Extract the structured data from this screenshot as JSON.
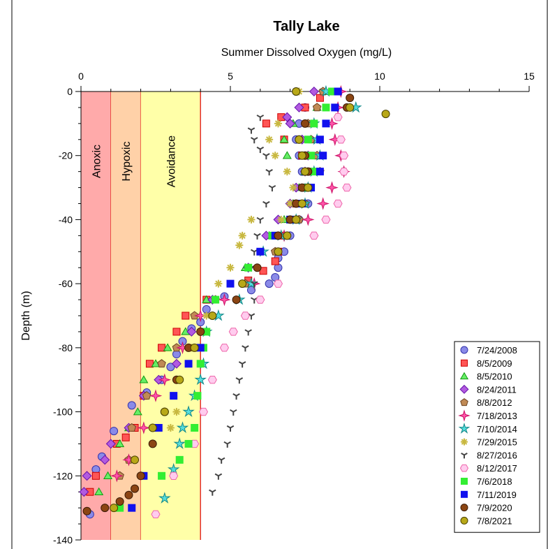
{
  "chart_data": {
    "type": "scatter",
    "title": "Tally Lake",
    "subtitle": "Summer Dissolved Oxygen (mg/L)",
    "xlabel": "",
    "ylabel": "Depth (m)",
    "xlim": [
      0,
      15
    ],
    "ylim": [
      -140,
      0
    ],
    "x_ticks": [
      "0",
      "5",
      "10",
      "15"
    ],
    "y_ticks": [
      "0",
      "-20",
      "-40",
      "-60",
      "-80",
      "-100",
      "-120",
      "-140"
    ],
    "axis_position": "top",
    "legend_position": "bottom-right",
    "zones": [
      {
        "label": "Anoxic",
        "x0": 0,
        "x1": 1,
        "color": "#ffaaaa"
      },
      {
        "label": "Hypoxic",
        "x0": 1,
        "x1": 2,
        "color": "#ffd1a8"
      },
      {
        "label": "Avoidance",
        "x0": 2,
        "x1": 4,
        "color": "#ffffa8"
      }
    ],
    "series": [
      {
        "name": "7/24/2008",
        "marker": "circle",
        "color": "#8a8ae8",
        "stroke": "#3333aa",
        "x": [
          7.2,
          7.5,
          7.3,
          7.2,
          7.3,
          7.4,
          7.5,
          7.6,
          7.3,
          7.0,
          6.8,
          6.6,
          6.6,
          6.5,
          6.3,
          5.7,
          4.8,
          4.2,
          4.0,
          3.7,
          3.4,
          3.2,
          3.0,
          2.7,
          2.2,
          1.7,
          1.1,
          0.7,
          0.5,
          0.3
        ],
        "y": [
          0,
          -5,
          -10,
          -15,
          -20,
          -25,
          -30,
          -35,
          -40,
          -45,
          -50,
          -52,
          -55,
          -58,
          -60,
          -62,
          -64,
          -68,
          -72,
          -74,
          -78,
          -82,
          -86,
          -90,
          -94,
          -98,
          -106,
          -114,
          -118,
          -132
        ]
      },
      {
        "name": "8/5/2009",
        "marker": "square",
        "color": "#ff5555",
        "stroke": "#cc0000",
        "x": [
          8.0,
          7.5,
          6.7,
          6.2,
          6.8,
          7.4,
          7.6,
          7.5,
          7.2,
          7.0,
          6.8,
          6.6,
          6.5,
          6.1,
          5.6,
          4.2,
          3.5,
          3.2,
          2.7,
          2.3,
          2.1,
          1.8,
          1.5,
          1.2,
          0.5,
          0.3
        ],
        "y": [
          -2,
          -5,
          -8,
          -10,
          -15,
          -20,
          -25,
          -30,
          -35,
          -40,
          -45,
          -50,
          -53,
          -56,
          -59,
          -65,
          -70,
          -75,
          -80,
          -85,
          -95,
          -105,
          -108,
          -110,
          -120,
          -125
        ]
      },
      {
        "name": "8/5/2010",
        "marker": "triangle",
        "color": "#66ee66",
        "stroke": "#119911",
        "x": [
          8.2,
          7.9,
          7.1,
          6.8,
          6.9,
          7.5,
          7.3,
          7.1,
          6.8,
          6.3,
          5.5,
          4.2,
          3.5,
          2.9,
          2.5,
          2.1,
          1.9,
          1.6,
          1.3,
          0.9,
          0.6
        ],
        "y": [
          0,
          -5,
          -10,
          -15,
          -20,
          -25,
          -30,
          -35,
          -40,
          -45,
          -55,
          -65,
          -75,
          -80,
          -85,
          -90,
          -100,
          -105,
          -110,
          -120,
          -125
        ]
      },
      {
        "name": "8/24/2011",
        "marker": "diamond",
        "color": "#b25ae0",
        "stroke": "#6611aa",
        "x": [
          7.8,
          7.3,
          6.9,
          7.0,
          7.4,
          7.6,
          7.5,
          7.2,
          7.0,
          6.6,
          6.2,
          5.6,
          4.4,
          3.7,
          3.2,
          2.6,
          2.1,
          1.6,
          1.0,
          0.8,
          0.2,
          0.1
        ],
        "y": [
          0,
          -5,
          -8,
          -10,
          -15,
          -20,
          -25,
          -30,
          -35,
          -40,
          -45,
          -55,
          -65,
          -75,
          -85,
          -90,
          -95,
          -105,
          -110,
          -115,
          -120,
          -125
        ]
      },
      {
        "name": "8/8/2012",
        "marker": "pentagon",
        "color": "#c08a55",
        "stroke": "#6b4422",
        "x": [
          8.1,
          7.9,
          7.6,
          7.7,
          7.9,
          8.0,
          7.6,
          7.5,
          7.3,
          6.5,
          5.5,
          4.5,
          3.8,
          3.2,
          2.7,
          2.2,
          1.7,
          1.6,
          1.3
        ],
        "y": [
          0,
          -5,
          -10,
          -15,
          -20,
          -25,
          -30,
          -35,
          -40,
          -50,
          -60,
          -65,
          -70,
          -80,
          -85,
          -95,
          -105,
          -115,
          -120
        ]
      },
      {
        "name": "7/18/2013",
        "marker": "star4",
        "color": "#ff55aa",
        "stroke": "#cc1166",
        "x": [
          8.7,
          8.6,
          8.4,
          8.5,
          8.7,
          8.8,
          8.4,
          8.1,
          7.6,
          6.8,
          5.8,
          4.8,
          4.0,
          3.4,
          2.8,
          2.5,
          2.1,
          1.6,
          1.2
        ],
        "y": [
          0,
          -5,
          -10,
          -15,
          -20,
          -25,
          -30,
          -35,
          -40,
          -45,
          -60,
          -65,
          -70,
          -80,
          -90,
          -95,
          -105,
          -115,
          -120
        ]
      },
      {
        "name": "7/10/2014",
        "marker": "star5",
        "color": "#55dddd",
        "stroke": "#118888",
        "x": [
          8.2,
          9.2,
          7.8,
          7.9,
          8.0,
          7.8,
          7.6,
          7.5,
          7.2,
          6.7,
          6.1,
          5.7,
          5.3,
          4.6,
          4.2,
          4.1,
          4.0,
          3.8,
          3.6,
          3.4,
          3.3,
          3.1,
          2.8
        ],
        "y": [
          0,
          -5,
          -10,
          -15,
          -20,
          -25,
          -30,
          -35,
          -40,
          -45,
          -50,
          -60,
          -65,
          -70,
          -75,
          -85,
          -90,
          -95,
          -100,
          -105,
          -110,
          -118,
          -127
        ]
      },
      {
        "name": "7/29/2015",
        "marker": "asterisk",
        "color": "#c8b840",
        "stroke": "#8c7a10",
        "x": [
          7.3,
          6.6,
          6.3,
          6.5,
          6.9,
          7.1,
          7.0,
          6.7,
          5.7,
          5.4,
          5.3,
          5.0,
          4.6,
          4.2,
          3.7,
          3.2,
          3.0
        ],
        "y": [
          0,
          -10,
          -15,
          -20,
          -25,
          -30,
          -35,
          -40,
          -40,
          -45,
          -48,
          -55,
          -60,
          -70,
          -80,
          -100,
          -105
        ]
      },
      {
        "name": "8/27/2016",
        "marker": "tri",
        "color": "#444444",
        "stroke": "#444444",
        "x": [
          6.0,
          5.7,
          5.8,
          6.0,
          6.2,
          6.3,
          6.4,
          6.2,
          6.0,
          5.9,
          5.8,
          5.7,
          5.8,
          5.8,
          5.7,
          5.6,
          5.5,
          5.4,
          5.3,
          5.2,
          5.1,
          5.0,
          4.9,
          4.7,
          4.6,
          4.4
        ],
        "y": [
          -8,
          -12,
          -15,
          -18,
          -20,
          -25,
          -30,
          -35,
          -40,
          -45,
          -50,
          -55,
          -60,
          -65,
          -70,
          -75,
          -80,
          -85,
          -90,
          -95,
          -100,
          -105,
          -110,
          -115,
          -120,
          -125
        ]
      },
      {
        "name": "8/12/2017",
        "marker": "hexagon",
        "color": "#ffccee",
        "stroke": "#ee66aa",
        "x": [
          8.6,
          8.7,
          8.8,
          8.8,
          8.9,
          8.6,
          8.2,
          7.8,
          6.6,
          6.0,
          5.5,
          5.1,
          4.8,
          4.4,
          4.1,
          3.8,
          3.1,
          2.5
        ],
        "y": [
          -8,
          -15,
          -20,
          -25,
          -30,
          -35,
          -40,
          -45,
          -60,
          -65,
          -70,
          -75,
          -80,
          -90,
          -100,
          -110,
          -120,
          -132
        ]
      },
      {
        "name": "7/6/2018",
        "marker": "square",
        "color": "#33ee33",
        "stroke": "#33ee33",
        "x": [
          8.4,
          8.2,
          7.8,
          7.6,
          7.7,
          7.8,
          7.6,
          7.4,
          7.0,
          6.4,
          5.6,
          4.5,
          4.2,
          4.1,
          4.0,
          3.9,
          3.8,
          3.6,
          3.3,
          2.7,
          1.3
        ],
        "y": [
          0,
          -5,
          -10,
          -15,
          -20,
          -25,
          -30,
          -35,
          -40,
          -45,
          -55,
          -65,
          -75,
          -80,
          -85,
          -95,
          -105,
          -110,
          -115,
          -120,
          -130
        ]
      },
      {
        "name": "7/11/2019",
        "marker": "square",
        "color": "#1111ee",
        "stroke": "#1111ee",
        "x": [
          8.6,
          8.5,
          8.2,
          8.0,
          8.1,
          8.0,
          7.7,
          7.4,
          7.0,
          6.5,
          6.0,
          5.0,
          4.0,
          3.6,
          3.1,
          2.6,
          2.1,
          1.7
        ],
        "y": [
          0,
          -5,
          -10,
          -15,
          -20,
          -25,
          -30,
          -35,
          -40,
          -45,
          -50,
          -60,
          -80,
          -85,
          -95,
          -105,
          -120,
          -130
        ]
      },
      {
        "name": "7/9/2020",
        "marker": "circle",
        "color": "#8b4513",
        "stroke": "#3a1a05",
        "x": [
          9.0,
          8.9,
          7.5,
          7.3,
          7.5,
          7.6,
          7.4,
          7.2,
          7.0,
          6.6,
          5.9,
          5.2,
          4.0,
          3.6,
          3.2,
          2.8,
          2.4,
          2.0,
          1.8,
          1.6,
          1.3,
          0.8,
          0.2
        ],
        "y": [
          -2,
          -5,
          -10,
          -15,
          -20,
          -25,
          -30,
          -35,
          -40,
          -45,
          -55,
          -65,
          -75,
          -80,
          -90,
          -100,
          -110,
          -120,
          -124,
          -126,
          -128,
          -130,
          -131
        ]
      },
      {
        "name": "7/8/2021",
        "marker": "circle",
        "color": "#b8a818",
        "stroke": "#4a4200",
        "x": [
          7.2,
          9.0,
          10.2,
          7.3,
          7.4,
          7.5,
          7.6,
          7.4,
          7.2,
          6.9,
          6.6,
          5.4,
          4.4,
          3.8,
          3.3,
          2.8,
          2.4,
          1.8,
          1.1
        ],
        "y": [
          0,
          -5,
          -7,
          -15,
          -20,
          -25,
          -30,
          -35,
          -40,
          -45,
          -50,
          -60,
          -70,
          -80,
          -90,
          -100,
          -105,
          -115,
          -130
        ]
      }
    ]
  }
}
